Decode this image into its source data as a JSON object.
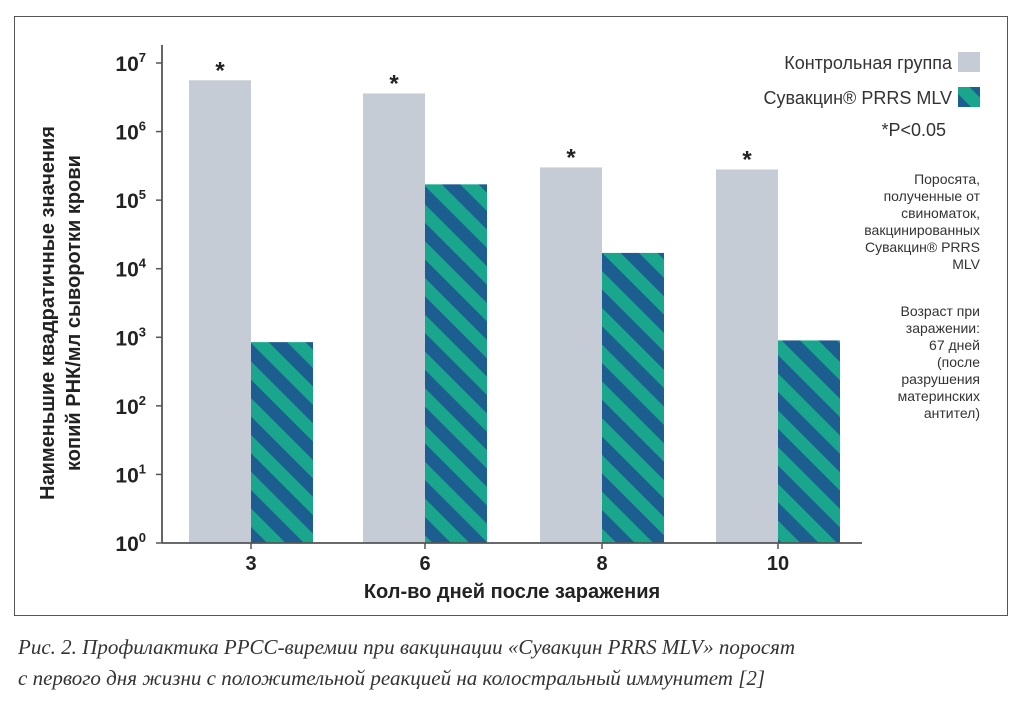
{
  "chart_data": {
    "type": "bar",
    "y_scale": "log",
    "ylim": [
      1,
      10000000
    ],
    "ytick_labels": [
      {
        "base": "10",
        "exp": "0"
      },
      {
        "base": "10",
        "exp": "1"
      },
      {
        "base": "10",
        "exp": "2"
      },
      {
        "base": "10",
        "exp": "3"
      },
      {
        "base": "10",
        "exp": "4"
      },
      {
        "base": "10",
        "exp": "5"
      },
      {
        "base": "10",
        "exp": "6"
      },
      {
        "base": "10",
        "exp": "7"
      }
    ],
    "categories": [
      "3",
      "6",
      "8",
      "10"
    ],
    "series": [
      {
        "name": "Контрольная группа",
        "color": "#c5ccd5",
        "values": [
          5600000,
          3600000,
          300000,
          280000
        ]
      },
      {
        "name": "Сувакцин® PRRS MLV",
        "color": "#1aa68c",
        "stripe_color": "#1c5e8f",
        "values": [
          850,
          170000,
          17000,
          900
        ]
      }
    ],
    "annotations": [
      "*",
      "*",
      "*",
      "*"
    ],
    "ylabel_lines": [
      "Наименьшие квадратичные значения",
      "копий РНК/мл сыворотки крови"
    ],
    "xlabel": "Кол-во дней после заражения",
    "legend_position": "top-right"
  },
  "legend": {
    "control": "Контрольная группа",
    "vaccine": "Сувакцин® PRRS MLV",
    "pvalue": "*P<0.05"
  },
  "notes": {
    "note1": [
      "Поросята,",
      "полученные от",
      "свиноматок,",
      "вакцинированных",
      "Сувакцин® PRRS",
      "MLV"
    ],
    "note2": [
      "Возраст при",
      "заражении:",
      "67 дней",
      "(после",
      "разрушения",
      "материнских",
      "антител)"
    ]
  },
  "caption": {
    "line1": "Рис. 2. Профилактика РРСС-виремии при вакцинации «Сувакцин PRRS MLV» поросят",
    "line2": "с первого дня жизни с положительной реакцией на колостральный иммунитет [2]"
  }
}
